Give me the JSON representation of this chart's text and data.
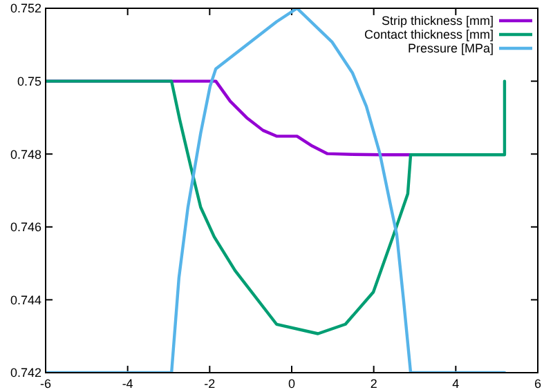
{
  "chart_data": {
    "type": "line",
    "xlim": [
      -6,
      6
    ],
    "ylim": [
      0.742,
      0.752
    ],
    "xticks": [
      -6,
      -4,
      -2,
      0,
      2,
      4,
      6
    ],
    "yticks": [
      0.742,
      0.744,
      0.746,
      0.748,
      0.75,
      0.752
    ],
    "grid": false,
    "legend": "top right",
    "marker": "none",
    "line_style": "solid",
    "series": [
      {
        "name": "Strip thickness [mm]",
        "color": "#9400d3",
        "x": [
          -6,
          -1.85,
          -1.5,
          -1.1,
          -0.7,
          -0.37,
          0.13,
          0.5,
          0.87,
          1.5,
          2.2,
          2.9
        ],
        "values": [
          0.75,
          0.75,
          0.74945,
          0.749,
          0.74865,
          0.74849,
          0.74849,
          0.74822,
          0.74801,
          0.74799,
          0.74798,
          0.74798
        ]
      },
      {
        "name": "Contact thickness [mm]",
        "color": "#009e73",
        "x": [
          -6,
          -2.93,
          -2.73,
          -2.46,
          -2.22,
          -1.89,
          -1.38,
          -0.37,
          0.64,
          1.31,
          1.99,
          2.49,
          2.83,
          2.9,
          5.19,
          5.19
        ],
        "values": [
          0.75,
          0.75,
          0.74894,
          0.74765,
          0.74654,
          0.74573,
          0.7448,
          0.74333,
          0.74307,
          0.74333,
          0.74421,
          0.7458,
          0.74691,
          0.74798,
          0.74798,
          0.75
        ]
      },
      {
        "name": "Pressure [MPa]",
        "color": "#56b4e9",
        "x": [
          -6,
          -2.93,
          -2.75,
          -2.53,
          -2.22,
          -1.99,
          -1.85,
          -0.37,
          0.13,
          0.98,
          1.48,
          1.82,
          2.15,
          2.42,
          2.56,
          2.73,
          2.9,
          5.19
        ],
        "values": [
          0.742,
          0.742,
          0.7446,
          0.74654,
          0.74857,
          0.74986,
          0.75034,
          0.75163,
          0.752,
          0.75108,
          0.75023,
          0.74931,
          0.74801,
          0.74654,
          0.7458,
          0.74396,
          0.742,
          0.742
        ]
      }
    ]
  }
}
